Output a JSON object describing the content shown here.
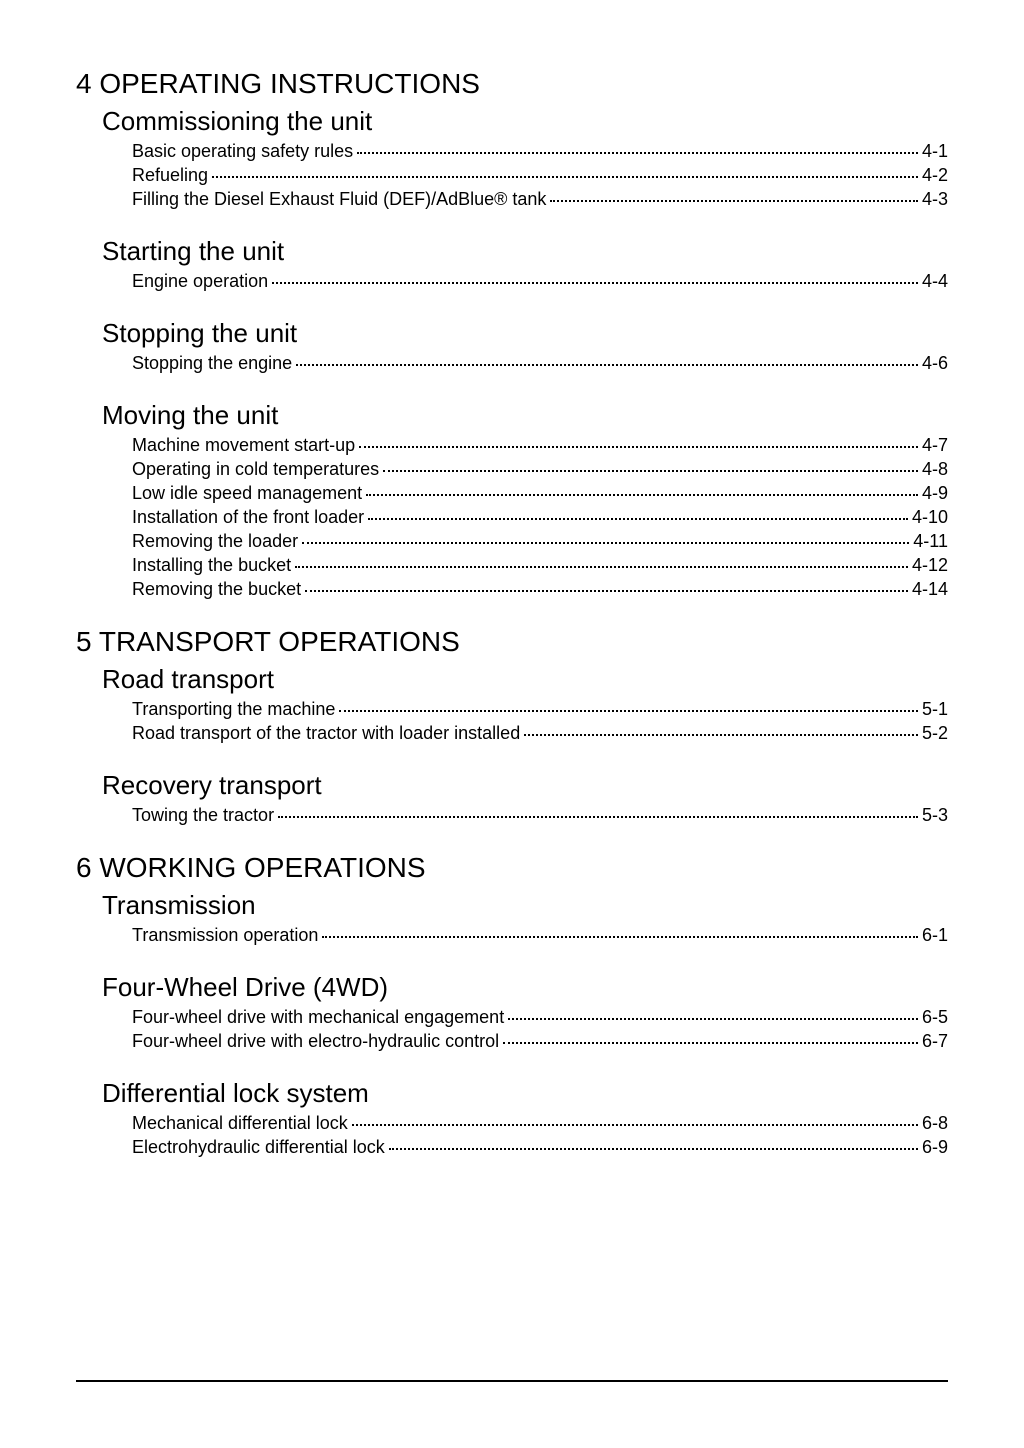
{
  "typography": {
    "chapter_fontsize": 28,
    "section_fontsize": 26,
    "entry_fontsize": 18,
    "font_family": "Arial",
    "text_color": "#000000",
    "background_color": "#ffffff",
    "rule_color": "#000000"
  },
  "chapters": [
    {
      "title": "4 OPERATING INSTRUCTIONS",
      "sections": [
        {
          "title": "Commissioning the unit",
          "entries": [
            {
              "label": "Basic operating safety rules",
              "page": "4-1"
            },
            {
              "label": "Refueling",
              "page": "4-2"
            },
            {
              "label": "Filling the Diesel Exhaust Fluid (DEF)/AdBlue® tank",
              "page": "4-3"
            }
          ]
        },
        {
          "title": "Starting the unit",
          "entries": [
            {
              "label": "Engine operation",
              "page": "4-4"
            }
          ]
        },
        {
          "title": "Stopping the unit",
          "entries": [
            {
              "label": "Stopping the engine",
              "page": "4-6"
            }
          ]
        },
        {
          "title": "Moving the unit",
          "entries": [
            {
              "label": "Machine movement start-up",
              "page": "4-7"
            },
            {
              "label": "Operating in cold temperatures",
              "page": "4-8"
            },
            {
              "label": "Low idle speed management",
              "page": "4-9"
            },
            {
              "label": "Installation of the front loader",
              "page": "4-10"
            },
            {
              "label": "Removing the loader",
              "page": "4-11"
            },
            {
              "label": "Installing the bucket",
              "page": "4-12"
            },
            {
              "label": "Removing the bucket",
              "page": "4-14"
            }
          ]
        }
      ]
    },
    {
      "title": "5 TRANSPORT OPERATIONS",
      "sections": [
        {
          "title": "Road transport",
          "entries": [
            {
              "label": "Transporting the machine",
              "page": "5-1"
            },
            {
              "label": "Road transport of the tractor with loader installed",
              "page": "5-2"
            }
          ]
        },
        {
          "title": "Recovery transport",
          "entries": [
            {
              "label": "Towing the tractor",
              "page": "5-3"
            }
          ]
        }
      ]
    },
    {
      "title": "6 WORKING OPERATIONS",
      "sections": [
        {
          "title": "Transmission",
          "entries": [
            {
              "label": "Transmission operation",
              "page": "6-1"
            }
          ]
        },
        {
          "title": "Four-Wheel Drive (4WD)",
          "entries": [
            {
              "label": "Four-wheel drive with mechanical engagement",
              "page": "6-5"
            },
            {
              "label": "Four-wheel drive with electro-hydraulic control",
              "page": "6-7"
            }
          ]
        },
        {
          "title": "Differential lock system",
          "entries": [
            {
              "label": "Mechanical differential lock",
              "page": "6-8"
            },
            {
              "label": "Electrohydraulic differential lock",
              "page": "6-9"
            }
          ]
        }
      ]
    }
  ]
}
